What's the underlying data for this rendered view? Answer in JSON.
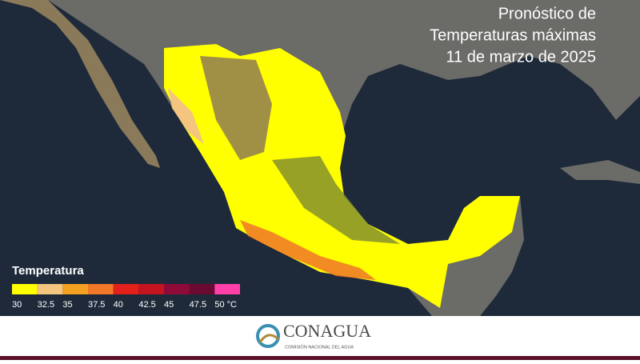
{
  "title": [
    "Pronóstico de",
    "Temperaturas máximas",
    "11 de marzo de 2025"
  ],
  "legend": {
    "title": "Temperatura",
    "colors": [
      "#ffff00",
      "#f3c57e",
      "#f4a020",
      "#f07828",
      "#e4201c",
      "#c41420",
      "#8e0a38",
      "#6a0a30",
      "#ff40a8"
    ],
    "labels": [
      "30",
      "32.5",
      "35",
      "37.5",
      "40",
      "42.5",
      "45",
      "47.5",
      "50 °C"
    ]
  },
  "logo": {
    "name": "CONAGUA",
    "subtitle": "COMISIÓN NACIONAL DEL AGUA"
  }
}
